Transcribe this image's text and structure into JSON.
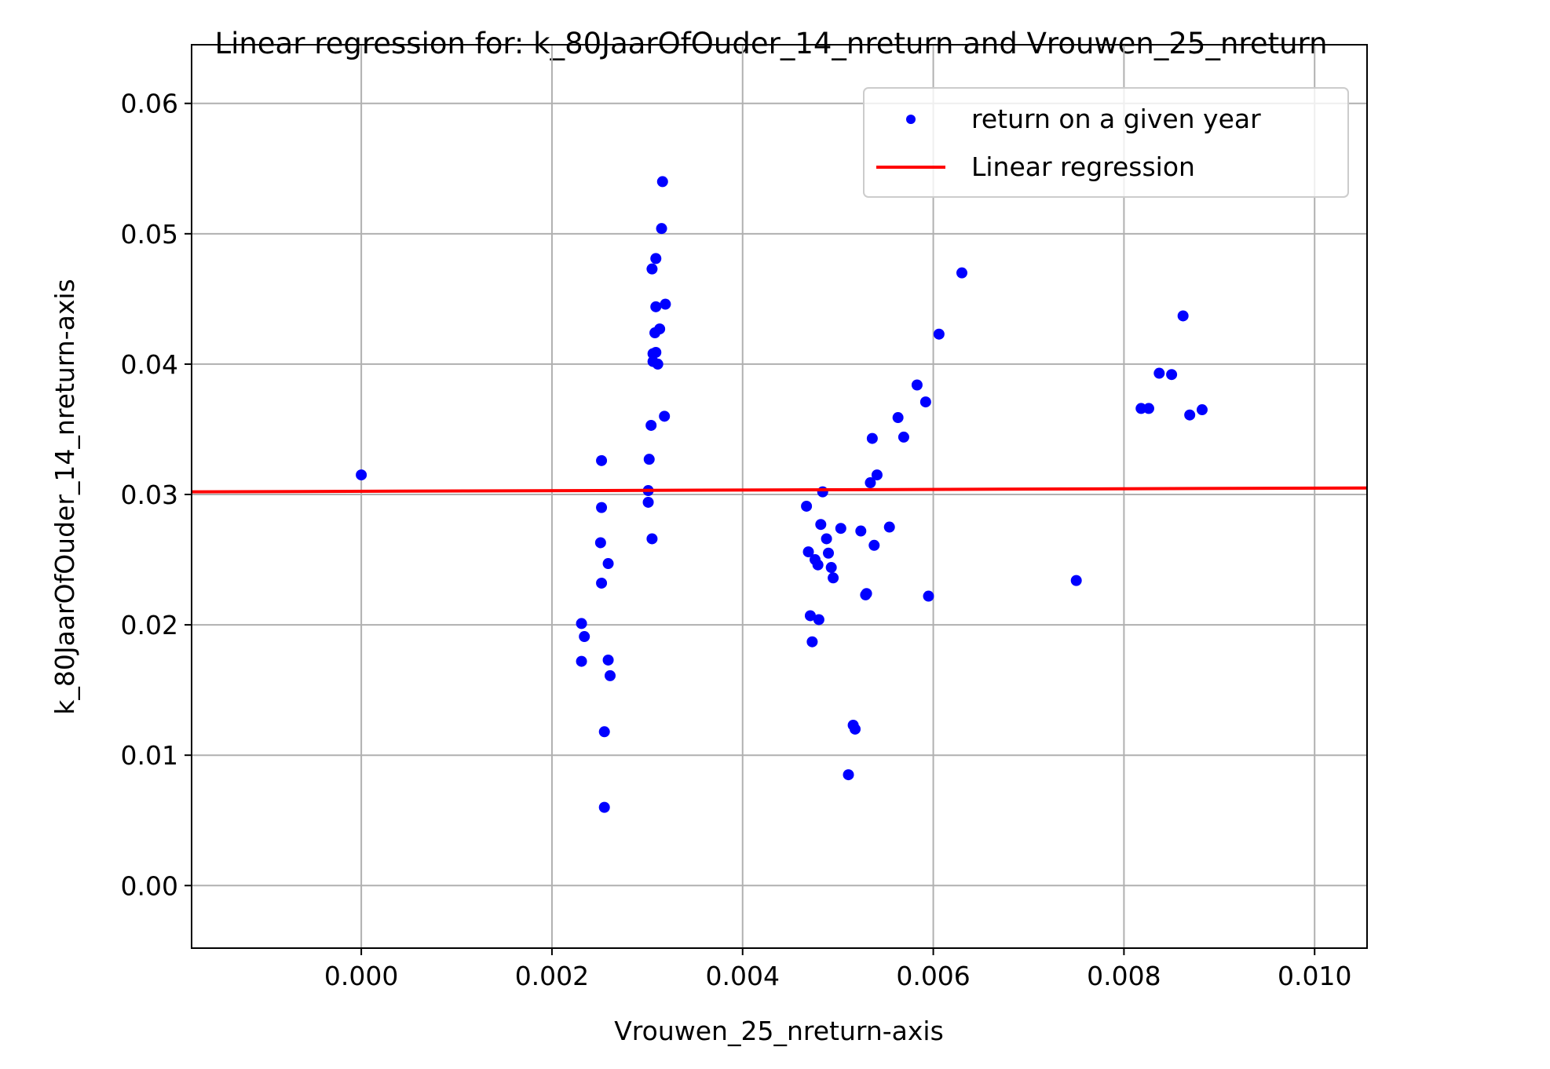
{
  "chart_data": {
    "type": "scatter",
    "title": "Linear regression for: k_80JaarOfOuder_14_nreturn and Vrouwen_25_nreturn",
    "xlabel": "Vrouwen_25_nreturn-axis",
    "ylabel": "k_80JaarOfOuder_14_nreturn-axis",
    "xlim": [
      -0.00178,
      0.01055
    ],
    "ylim": [
      -0.0048,
      0.0645
    ],
    "x_ticks": [
      0.0,
      0.002,
      0.004,
      0.006,
      0.008,
      0.01
    ],
    "x_tick_labels": [
      "0.000",
      "0.002",
      "0.004",
      "0.006",
      "0.008",
      "0.010"
    ],
    "y_ticks": [
      0.0,
      0.01,
      0.02,
      0.03,
      0.04,
      0.05,
      0.06
    ],
    "y_tick_labels": [
      "0.00",
      "0.01",
      "0.02",
      "0.03",
      "0.04",
      "0.05",
      "0.06"
    ],
    "grid": true,
    "legend_position": "top-right",
    "series": [
      {
        "name": "return on a given year",
        "kind": "scatter",
        "color": "#0000ff",
        "points": [
          [
            0.0,
            0.0315
          ],
          [
            0.00231,
            0.0201
          ],
          [
            0.00234,
            0.0191
          ],
          [
            0.00231,
            0.0172
          ],
          [
            0.00252,
            0.0326
          ],
          [
            0.00252,
            0.029
          ],
          [
            0.00251,
            0.0263
          ],
          [
            0.00252,
            0.0232
          ],
          [
            0.00259,
            0.0247
          ],
          [
            0.00259,
            0.0173
          ],
          [
            0.00261,
            0.0161
          ],
          [
            0.00255,
            0.0118
          ],
          [
            0.00255,
            0.006
          ],
          [
            0.00316,
            0.054
          ],
          [
            0.00315,
            0.0504
          ],
          [
            0.00309,
            0.0481
          ],
          [
            0.00305,
            0.0473
          ],
          [
            0.00319,
            0.0446
          ],
          [
            0.00309,
            0.0444
          ],
          [
            0.00313,
            0.0427
          ],
          [
            0.00308,
            0.0424
          ],
          [
            0.00309,
            0.0409
          ],
          [
            0.00306,
            0.0408
          ],
          [
            0.00306,
            0.0402
          ],
          [
            0.00311,
            0.04
          ],
          [
            0.00318,
            0.036
          ],
          [
            0.00304,
            0.0353
          ],
          [
            0.00302,
            0.0327
          ],
          [
            0.00301,
            0.0303
          ],
          [
            0.00301,
            0.0294
          ],
          [
            0.00305,
            0.0266
          ],
          [
            0.00467,
            0.0291
          ],
          [
            0.00484,
            0.0302
          ],
          [
            0.00482,
            0.0277
          ],
          [
            0.00503,
            0.0274
          ],
          [
            0.00469,
            0.0256
          ],
          [
            0.00476,
            0.025
          ],
          [
            0.00479,
            0.0246
          ],
          [
            0.00488,
            0.0266
          ],
          [
            0.0049,
            0.0255
          ],
          [
            0.00493,
            0.0244
          ],
          [
            0.00495,
            0.0236
          ],
          [
            0.00471,
            0.0207
          ],
          [
            0.0048,
            0.0204
          ],
          [
            0.00473,
            0.0187
          ],
          [
            0.00516,
            0.0123
          ],
          [
            0.00518,
            0.012
          ],
          [
            0.00511,
            0.0085
          ],
          [
            0.00524,
            0.0272
          ],
          [
            0.0053,
            0.0224
          ],
          [
            0.00529,
            0.0223
          ],
          [
            0.00538,
            0.0261
          ],
          [
            0.00534,
            0.0309
          ],
          [
            0.00541,
            0.0315
          ],
          [
            0.00536,
            0.0343
          ],
          [
            0.00554,
            0.0275
          ],
          [
            0.00563,
            0.0359
          ],
          [
            0.00569,
            0.0344
          ],
          [
            0.00583,
            0.0384
          ],
          [
            0.00592,
            0.0371
          ],
          [
            0.00595,
            0.0222
          ],
          [
            0.00606,
            0.0423
          ],
          [
            0.0063,
            0.047
          ],
          [
            0.0075,
            0.0234
          ],
          [
            0.00818,
            0.0366
          ],
          [
            0.00826,
            0.0366
          ],
          [
            0.00837,
            0.0393
          ],
          [
            0.0085,
            0.0392
          ],
          [
            0.00862,
            0.0437
          ],
          [
            0.00869,
            0.0361
          ],
          [
            0.00882,
            0.0365
          ]
        ]
      },
      {
        "name": "Linear regression",
        "kind": "line",
        "color": "#ff0000",
        "x": [
          -0.00178,
          0.01055
        ],
        "y": [
          0.0302,
          0.0305
        ]
      }
    ]
  }
}
